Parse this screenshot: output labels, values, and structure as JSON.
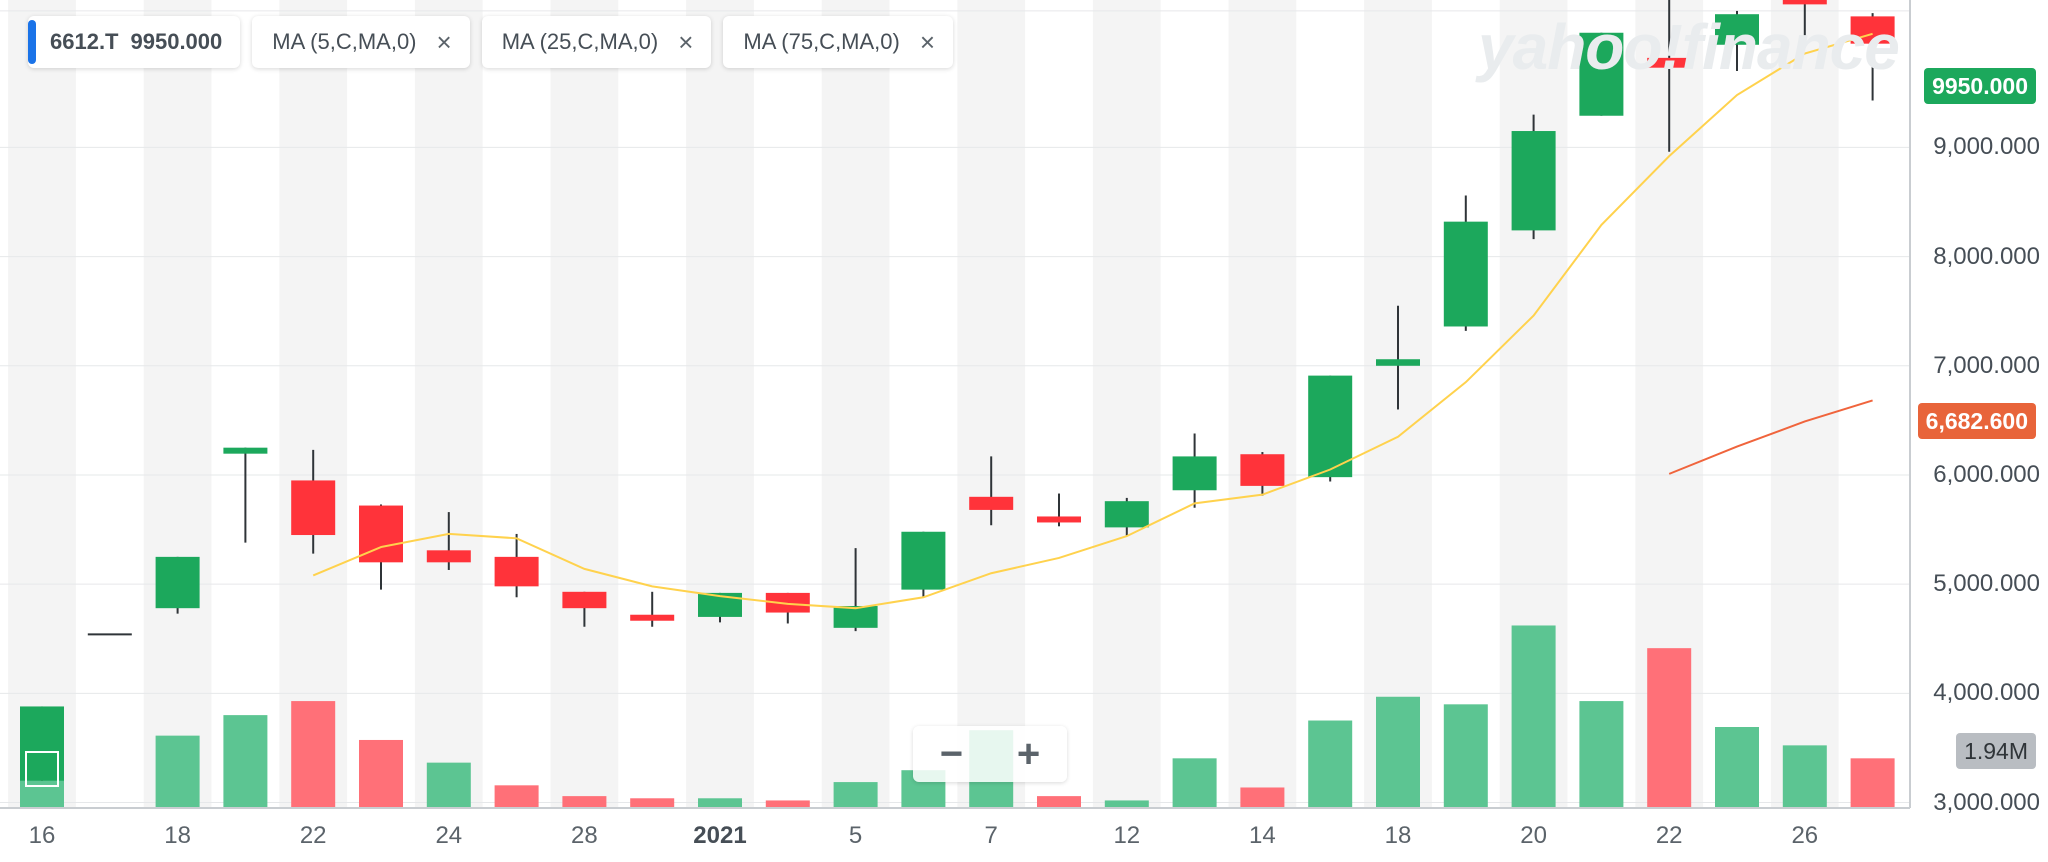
{
  "legend": {
    "symbol": "6612.T",
    "price": "9950.000",
    "studies": [
      {
        "label": "MA (5,C,MA,0)"
      },
      {
        "label": "MA (25,C,MA,0)"
      },
      {
        "label": "MA (75,C,MA,0)"
      }
    ],
    "close_glyph": "×"
  },
  "watermark": "yahoo!finance",
  "zoom": {
    "minus": "−",
    "plus": "+"
  },
  "badges": {
    "price": "9950.000",
    "ma25": "6,682.600",
    "volume": "1.94M"
  },
  "colors": {
    "up": "#1ca85c",
    "down": "#ff333a",
    "ma5": "#ffd24d",
    "ma25": "#f0643c",
    "vol_up": "#5cc592",
    "vol_down": "#ff7078"
  },
  "chart_data": {
    "type": "candlestick",
    "ylim": [
      2950,
      10350
    ],
    "y_ticks": [
      3000,
      4000,
      5000,
      6000,
      7000,
      8000,
      9000
    ],
    "y_tick_labels": [
      "3,000.000",
      "4,000.000",
      "5,000.000",
      "6,000.000",
      "7,000.000",
      "8,000.000",
      "9,000.000"
    ],
    "x_tick_labels": [
      {
        "label": "16",
        "index": 0
      },
      {
        "label": "18",
        "index": 2
      },
      {
        "label": "22",
        "index": 4
      },
      {
        "label": "24",
        "index": 6
      },
      {
        "label": "28",
        "index": 8
      },
      {
        "label": "2021",
        "index": 10,
        "bold": true
      },
      {
        "label": "5",
        "index": 12
      },
      {
        "label": "7",
        "index": 14
      },
      {
        "label": "12",
        "index": 16
      },
      {
        "label": "14",
        "index": 18
      },
      {
        "label": "18",
        "index": 20
      },
      {
        "label": "20",
        "index": 22
      },
      {
        "label": "22",
        "index": 24
      },
      {
        "label": "26",
        "index": 26
      }
    ],
    "candles": [
      {
        "o": 3200,
        "h": 3880,
        "l": 3200,
        "c": 3880
      },
      {
        "o": 4540,
        "h": 4540,
        "l": 4540,
        "c": 4540
      },
      {
        "o": 4780,
        "h": 5250,
        "l": 4730,
        "c": 5250
      },
      {
        "o": 6250,
        "h": 6250,
        "l": 5380,
        "c": 6250
      },
      {
        "o": 5950,
        "h": 6230,
        "l": 5280,
        "c": 5450
      },
      {
        "o": 5720,
        "h": 5730,
        "l": 4950,
        "c": 5200
      },
      {
        "o": 5310,
        "h": 5660,
        "l": 5130,
        "c": 5200
      },
      {
        "o": 5250,
        "h": 5460,
        "l": 4880,
        "c": 4980
      },
      {
        "o": 4930,
        "h": 4930,
        "l": 4610,
        "c": 4780
      },
      {
        "o": 4720,
        "h": 4930,
        "l": 4610,
        "c": 4670
      },
      {
        "o": 4700,
        "h": 4920,
        "l": 4650,
        "c": 4920
      },
      {
        "o": 4920,
        "h": 4920,
        "l": 4640,
        "c": 4740
      },
      {
        "o": 4600,
        "h": 5330,
        "l": 4570,
        "c": 4800
      },
      {
        "o": 4950,
        "h": 5480,
        "l": 4880,
        "c": 5480
      },
      {
        "o": 5800,
        "h": 6170,
        "l": 5540,
        "c": 5680
      },
      {
        "o": 5620,
        "h": 5830,
        "l": 5530,
        "c": 5570
      },
      {
        "o": 5520,
        "h": 5790,
        "l": 5440,
        "c": 5760
      },
      {
        "o": 5860,
        "h": 6380,
        "l": 5700,
        "c": 6170
      },
      {
        "o": 6190,
        "h": 6210,
        "l": 5810,
        "c": 5900
      },
      {
        "o": 5980,
        "h": 6910,
        "l": 5940,
        "c": 6910
      },
      {
        "o": 7000,
        "h": 7550,
        "l": 6600,
        "c": 7060
      },
      {
        "o": 7360,
        "h": 8560,
        "l": 7320,
        "c": 8320
      },
      {
        "o": 8240,
        "h": 9300,
        "l": 8160,
        "c": 9150
      },
      {
        "o": 9290,
        "h": 10050,
        "l": 9290,
        "c": 10050
      },
      {
        "o": 9820,
        "h": 10360,
        "l": 8960,
        "c": 9730
      },
      {
        "o": 9940,
        "h": 10250,
        "l": 9700,
        "c": 10220
      },
      {
        "o": 10400,
        "h": 10440,
        "l": 9940,
        "c": 10310
      },
      {
        "o": 10200,
        "h": 10230,
        "l": 9430,
        "c": 9950
      }
    ],
    "volume_relative": [
      0.4,
      0.0,
      0.67,
      0.86,
      0.99,
      0.63,
      0.42,
      0.21,
      0.11,
      0.09,
      0.09,
      0.07,
      0.24,
      0.35,
      0.72,
      0.11,
      0.07,
      0.46,
      0.19,
      0.81,
      1.03,
      0.96,
      1.69,
      0.99,
      1.48,
      0.75,
      0.58,
      0.46
    ],
    "volume_direction": [
      "up",
      "up",
      "up",
      "up",
      "down",
      "down",
      "up",
      "down",
      "down",
      "down",
      "up",
      "down",
      "up",
      "up",
      "up",
      "down",
      "up",
      "up",
      "down",
      "up",
      "up",
      "up",
      "up",
      "up",
      "down",
      "up",
      "up",
      "down"
    ],
    "series": [
      {
        "name": "MA (5,C,MA,0)",
        "start_index": 4,
        "values": [
          5080,
          5340,
          5460,
          5420,
          5140,
          4980,
          4890,
          4820,
          4780,
          4880,
          5100,
          5240,
          5440,
          5740,
          5820,
          6050,
          6350,
          6850,
          7460,
          8290,
          8920,
          9480,
          9860,
          10040
        ]
      },
      {
        "name": "MA (25,C,MA,0)",
        "start_index": 24,
        "values": [
          6010,
          6260,
          6490,
          6682.6
        ]
      }
    ]
  }
}
